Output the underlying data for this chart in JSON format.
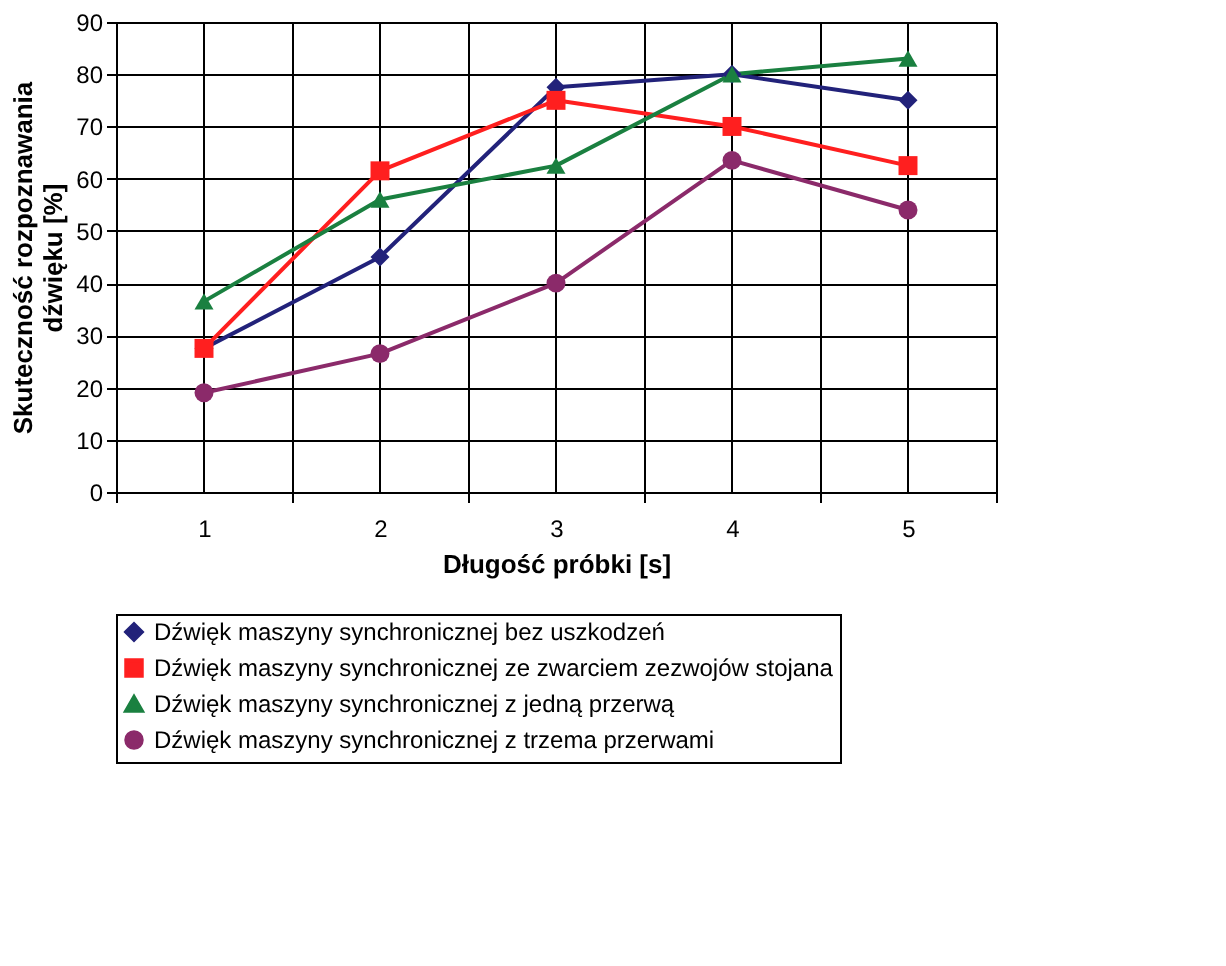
{
  "chart_data": {
    "type": "line",
    "xlabel": "Długość próbki [s]",
    "ylabel": "Skuteczność rozpoznawania\ndźwięku [%]",
    "categories": [
      "1",
      "2",
      "3",
      "4",
      "5"
    ],
    "series": [
      {
        "name": "Dźwięk maszyny synchronicznej bez uszkodzeń",
        "color": "#22227a",
        "marker": "diamond",
        "values": [
          27.5,
          45,
          77.5,
          80,
          75
        ]
      },
      {
        "name": "Dźwięk maszyny synchronicznej ze zwarciem zezwojów stojana",
        "color": "#ff1f1f",
        "marker": "square",
        "values": [
          27.5,
          61.5,
          75,
          70,
          62.5
        ]
      },
      {
        "name": "Dźwięk maszyny synchronicznej z jedną przerwą",
        "color": "#1a8040",
        "marker": "triangle",
        "values": [
          36.5,
          56,
          62.5,
          80,
          83
        ]
      },
      {
        "name": "Dźwięk maszyny synchronicznej z trzema przerwami",
        "color": "#8b2a6a",
        "marker": "circle",
        "values": [
          19,
          26.5,
          40,
          63.5,
          54
        ]
      }
    ],
    "ylim": [
      0,
      90
    ],
    "yticks": [
      0,
      10,
      20,
      30,
      40,
      50,
      60,
      70,
      80,
      90
    ],
    "grid": true,
    "legend": "bottom",
    "line_style": "solid"
  }
}
